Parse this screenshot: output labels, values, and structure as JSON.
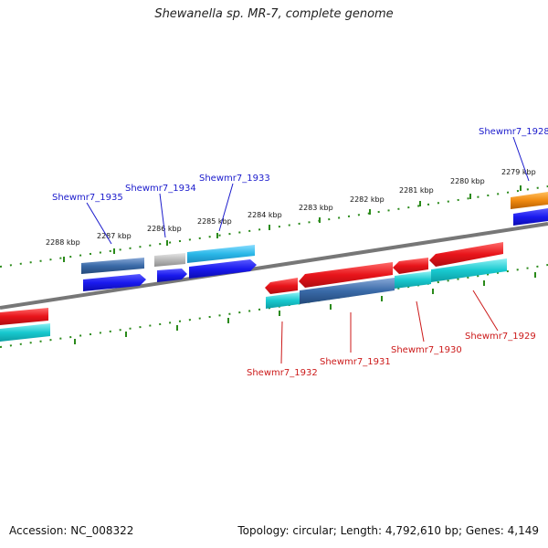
{
  "title": "Shewanella sp. MR-7, complete genome",
  "footer": {
    "accession": "Accession: NC_008322",
    "summary": "Topology: circular; Length: 4,792,610 bp; Genes: 4,149"
  },
  "colors": {
    "forward_cds": "#1a1aee",
    "reverse_cds": "#e8141a",
    "forward_gene": "#2bb8e8",
    "reverse_gene": "#18c9cf",
    "highlight_gene": "#3a6aa8",
    "pseudo_gene": "#b8b8b8",
    "tick": "#2a8a1a",
    "forward_label": "#1a1acc",
    "reverse_label": "#cc1a1a",
    "backbone": "#777777",
    "orange_feature": "#f08a10"
  },
  "position_labels": [
    "2288 kbp",
    "2287 kbp",
    "2286 kbp",
    "2285 kbp",
    "2284 kbp",
    "2283 kbp",
    "2282 kbp",
    "2281 kbp",
    "2280 kbp",
    "2279 kbp"
  ],
  "forward_genes": [
    {
      "label": "Shewmr7_1935"
    },
    {
      "label": "Shewmr7_1934"
    },
    {
      "label": "Shewmr7_1933"
    },
    {
      "label": "Shewmr7_1928"
    }
  ],
  "reverse_genes": [
    {
      "label": "Shewmr7_1932"
    },
    {
      "label": "Shewmr7_1931"
    },
    {
      "label": "Shewmr7_1930"
    },
    {
      "label": "Shewmr7_1929"
    }
  ]
}
